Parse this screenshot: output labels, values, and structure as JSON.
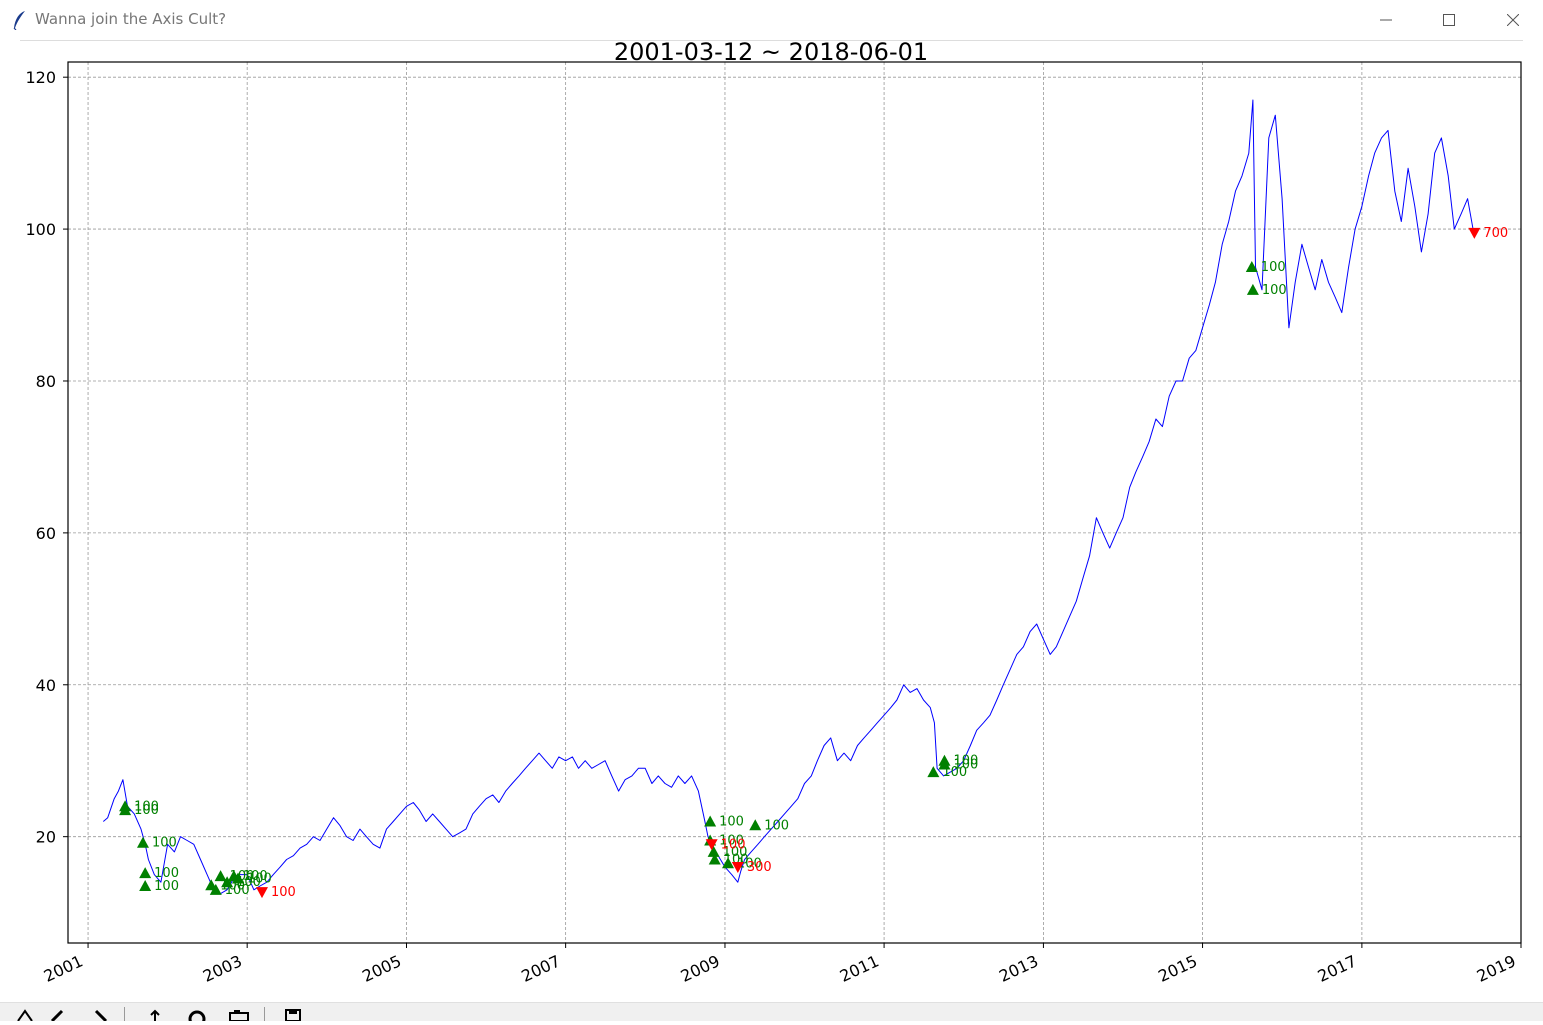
{
  "window": {
    "title": "Wanna join the Axis Cult?",
    "icon": "feather-icon",
    "controls": [
      "minimize-icon",
      "maximize-icon",
      "close-icon"
    ]
  },
  "toolbar": {
    "buttons": [
      "home-icon",
      "back-icon",
      "forward-icon",
      "pan-icon",
      "zoom-icon",
      "configure-icon",
      "save-icon"
    ]
  },
  "colors": {
    "price_line": "#0000ff",
    "buy_marker": "#008000",
    "sell_marker": "#ff0000",
    "grid": "#999999"
  },
  "chart_data": {
    "type": "line",
    "title": "2001-03-12 ~ 2018-06-01",
    "xlabel": "",
    "ylabel": "",
    "xlim": [
      "2000-10-01",
      "2019-01-01"
    ],
    "ylim": [
      6,
      122
    ],
    "grid": true,
    "x_ticks": [
      "2001",
      "2003",
      "2005",
      "2007",
      "2009",
      "2011",
      "2013",
      "2015",
      "2017",
      "2019"
    ],
    "y_ticks": [
      20,
      40,
      60,
      80,
      100,
      120
    ],
    "series": [
      {
        "x": [
          "2001-03-12",
          "2001-04-01",
          "2001-05-01",
          "2001-05-20",
          "2001-06-10",
          "2001-07-01",
          "2001-08-01",
          "2001-09-01",
          "2001-09-20",
          "2001-10-05",
          "2001-11-01",
          "2001-12-01",
          "2002-01-01",
          "2002-02-01",
          "2002-03-01",
          "2002-04-01",
          "2002-05-01",
          "2002-06-01",
          "2002-07-01",
          "2002-08-01",
          "2002-09-01",
          "2002-10-01",
          "2002-11-01",
          "2002-12-01",
          "2003-01-01",
          "2003-02-01",
          "2003-03-01",
          "2003-04-01",
          "2003-05-01",
          "2003-06-01",
          "2003-07-01",
          "2003-08-01",
          "2003-09-01",
          "2003-10-01",
          "2003-11-01",
          "2003-12-01",
          "2004-01-01",
          "2004-02-01",
          "2004-03-01",
          "2004-04-01",
          "2004-05-01",
          "2004-06-01",
          "2004-07-01",
          "2004-08-01",
          "2004-09-01",
          "2004-10-01",
          "2004-11-01",
          "2004-12-01",
          "2005-01-01",
          "2005-02-01",
          "2005-03-01",
          "2005-04-01",
          "2005-05-01",
          "2005-06-01",
          "2005-07-01",
          "2005-08-01",
          "2005-09-01",
          "2005-10-01",
          "2005-11-01",
          "2005-12-01",
          "2006-01-01",
          "2006-02-01",
          "2006-03-01",
          "2006-04-01",
          "2006-05-01",
          "2006-06-01",
          "2006-07-01",
          "2006-08-01",
          "2006-09-01",
          "2006-10-01",
          "2006-11-01",
          "2006-12-01",
          "2007-01-01",
          "2007-02-01",
          "2007-03-01",
          "2007-04-01",
          "2007-05-01",
          "2007-06-01",
          "2007-07-01",
          "2007-08-01",
          "2007-09-01",
          "2007-10-01",
          "2007-11-01",
          "2007-12-01",
          "2008-01-01",
          "2008-02-01",
          "2008-03-01",
          "2008-04-01",
          "2008-05-01",
          "2008-06-01",
          "2008-07-01",
          "2008-08-01",
          "2008-09-01",
          "2008-10-01",
          "2008-10-15",
          "2008-11-01",
          "2008-11-15",
          "2008-12-01",
          "2009-01-01",
          "2009-02-01",
          "2009-03-01",
          "2009-03-15",
          "2009-04-01",
          "2009-05-01",
          "2009-06-01",
          "2009-07-01",
          "2009-08-01",
          "2009-09-01",
          "2009-10-01",
          "2009-11-01",
          "2009-12-01",
          "2010-01-01",
          "2010-02-01",
          "2010-03-01",
          "2010-04-01",
          "2010-05-01",
          "2010-06-01",
          "2010-07-01",
          "2010-08-01",
          "2010-09-01",
          "2010-10-01",
          "2010-11-01",
          "2010-12-01",
          "2011-01-01",
          "2011-02-01",
          "2011-03-01",
          "2011-04-01",
          "2011-05-01",
          "2011-06-01",
          "2011-07-01",
          "2011-08-01",
          "2011-08-20",
          "2011-09-01",
          "2011-10-01",
          "2011-11-01",
          "2011-12-01",
          "2012-01-01",
          "2012-02-01",
          "2012-03-01",
          "2012-04-01",
          "2012-05-01",
          "2012-06-01",
          "2012-07-01",
          "2012-08-01",
          "2012-09-01",
          "2012-10-01",
          "2012-11-01",
          "2012-12-01",
          "2013-01-01",
          "2013-02-01",
          "2013-03-01",
          "2013-04-01",
          "2013-05-01",
          "2013-06-01",
          "2013-07-01",
          "2013-08-01",
          "2013-09-01",
          "2013-10-01",
          "2013-11-01",
          "2013-12-01",
          "2014-01-01",
          "2014-02-01",
          "2014-03-01",
          "2014-04-01",
          "2014-05-01",
          "2014-06-01",
          "2014-07-01",
          "2014-08-01",
          "2014-09-01",
          "2014-10-01",
          "2014-11-01",
          "2014-12-01",
          "2015-01-01",
          "2015-02-01",
          "2015-03-01",
          "2015-04-01",
          "2015-05-01",
          "2015-06-01",
          "2015-07-01",
          "2015-08-01",
          "2015-08-20",
          "2015-09-01",
          "2015-10-01",
          "2015-11-01",
          "2015-12-01",
          "2016-01-01",
          "2016-02-01",
          "2016-03-01",
          "2016-04-01",
          "2016-05-01",
          "2016-06-01",
          "2016-07-01",
          "2016-08-01",
          "2016-09-01",
          "2016-10-01",
          "2016-11-01",
          "2016-12-01",
          "2017-01-01",
          "2017-02-01",
          "2017-03-01",
          "2017-04-01",
          "2017-05-01",
          "2017-06-01",
          "2017-07-01",
          "2017-08-01",
          "2017-09-01",
          "2017-10-01",
          "2017-11-01",
          "2017-12-01",
          "2018-01-01",
          "2018-02-01",
          "2018-03-01",
          "2018-04-01",
          "2018-05-01",
          "2018-06-01"
        ],
        "y": [
          22,
          22.5,
          25,
          26,
          27.5,
          24,
          23,
          21,
          19,
          17,
          15,
          14,
          19,
          18,
          20,
          19.5,
          19,
          17,
          15,
          13,
          12.5,
          13,
          14.5,
          15,
          15,
          13,
          13.5,
          14,
          15,
          16,
          17,
          17.5,
          18.5,
          19,
          20,
          19.5,
          21,
          22.5,
          21.5,
          20,
          19.5,
          21,
          20,
          19,
          18.5,
          21,
          22,
          23,
          24,
          24.5,
          23.5,
          22,
          23,
          22,
          21,
          20,
          20.5,
          21,
          23,
          24,
          25,
          25.5,
          24.5,
          26,
          27,
          28,
          29,
          30,
          31,
          30,
          29,
          30.5,
          30,
          30.5,
          29,
          30,
          29,
          29.5,
          30,
          28,
          26,
          27.5,
          28,
          29,
          29,
          27,
          28,
          27,
          26.5,
          28,
          27,
          28,
          26,
          22,
          20,
          19,
          18,
          17.5,
          16,
          15,
          14,
          15.5,
          17,
          18,
          19,
          20,
          21,
          22,
          23,
          24,
          25,
          27,
          28,
          30,
          32,
          33,
          30,
          31,
          30,
          32,
          33,
          34,
          35,
          36,
          37,
          38,
          40,
          39,
          39.5,
          38,
          37,
          35,
          29,
          28,
          28.5,
          29,
          30,
          32,
          34,
          35,
          36,
          38,
          40,
          42,
          44,
          45,
          47,
          48,
          46,
          44,
          45,
          47,
          49,
          51,
          54,
          57,
          62,
          60,
          58,
          60,
          62,
          66,
          68,
          70,
          72,
          75,
          74,
          78,
          80,
          80,
          83,
          84,
          87,
          90,
          93,
          98,
          101,
          105,
          107,
          110,
          117,
          95,
          92,
          112,
          115,
          104,
          87,
          93,
          98,
          95,
          92,
          96,
          93,
          91,
          89,
          95,
          100,
          103,
          107,
          110,
          112,
          113,
          105,
          101,
          108,
          103,
          97,
          102,
          110,
          112,
          107,
          100,
          102,
          104,
          99
        ]
      }
    ],
    "buy_trades": [
      {
        "x": "2001-06-20",
        "y": 23.5,
        "label": "100"
      },
      {
        "x": "2001-06-20",
        "y": 24.0,
        "label": "100"
      },
      {
        "x": "2001-09-10",
        "y": 19.2,
        "label": "100"
      },
      {
        "x": "2001-09-20",
        "y": 15.2,
        "label": "100"
      },
      {
        "x": "2001-09-20",
        "y": 13.5,
        "label": "100"
      },
      {
        "x": "2002-07-20",
        "y": 13.6,
        "label": "100"
      },
      {
        "x": "2002-08-10",
        "y": 13.0,
        "label": "100"
      },
      {
        "x": "2002-09-01",
        "y": 14.8,
        "label": "100"
      },
      {
        "x": "2002-10-01",
        "y": 14.0,
        "label": "100"
      },
      {
        "x": "2002-11-01",
        "y": 14.8,
        "label": "100"
      },
      {
        "x": "2002-11-20",
        "y": 14.5,
        "label": "100"
      },
      {
        "x": "2008-10-25",
        "y": 22.0,
        "label": "100"
      },
      {
        "x": "2008-10-25",
        "y": 19.5,
        "label": "100"
      },
      {
        "x": "2008-11-10",
        "y": 18.0,
        "label": "100"
      },
      {
        "x": "2008-11-15",
        "y": 17.0,
        "label": "100"
      },
      {
        "x": "2009-01-15",
        "y": 16.5,
        "label": "100"
      },
      {
        "x": "2009-05-20",
        "y": 21.5,
        "label": "100"
      },
      {
        "x": "2011-08-15",
        "y": 28.5,
        "label": "100"
      },
      {
        "x": "2011-10-05",
        "y": 29.5,
        "label": "100"
      },
      {
        "x": "2011-10-05",
        "y": 30.0,
        "label": "100"
      },
      {
        "x": "2015-08-15",
        "y": 95.0,
        "label": "100"
      },
      {
        "x": "2015-08-20",
        "y": 92.0,
        "label": "100"
      }
    ],
    "sell_trades": [
      {
        "x": "2003-03-10",
        "y": 12.7,
        "label": "100"
      },
      {
        "x": "2008-11-01",
        "y": 19.0,
        "label": "100"
      },
      {
        "x": "2009-03-01",
        "y": 16.0,
        "label": "300"
      },
      {
        "x": "2018-06-01",
        "y": 99.5,
        "label": "700"
      }
    ]
  }
}
